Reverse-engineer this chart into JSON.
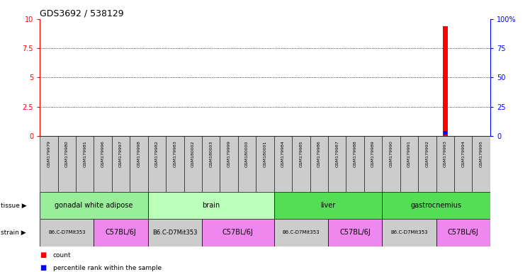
{
  "title": "GDS3692 / 538129",
  "samples": [
    "GSM179979",
    "GSM179980",
    "GSM179981",
    "GSM179996",
    "GSM179997",
    "GSM179998",
    "GSM179982",
    "GSM179983",
    "GSM180002",
    "GSM180003",
    "GSM179999",
    "GSM180000",
    "GSM180001",
    "GSM179984",
    "GSM179985",
    "GSM179986",
    "GSM179987",
    "GSM179988",
    "GSM179989",
    "GSM179990",
    "GSM179991",
    "GSM179992",
    "GSM179993",
    "GSM179994",
    "GSM179995"
  ],
  "count_values": [
    0,
    0,
    0,
    0,
    0,
    0,
    0,
    0,
    0,
    0,
    0,
    0,
    0,
    0,
    0,
    0,
    0,
    0,
    0,
    0,
    0,
    0,
    9.4,
    0,
    0
  ],
  "percentile_values": [
    0,
    0,
    0,
    0,
    0,
    0,
    0,
    0,
    0,
    0,
    0,
    0,
    0,
    0,
    0,
    0,
    0,
    0,
    0,
    0,
    0,
    0,
    3,
    0,
    0
  ],
  "ylim_left": [
    0,
    10
  ],
  "ylim_right": [
    0,
    100
  ],
  "yticks_left": [
    0,
    2.5,
    5,
    7.5,
    10
  ],
  "yticks_right": [
    0,
    25,
    50,
    75,
    100
  ],
  "ytick_labels_left": [
    "0",
    "2.5",
    "5",
    "7.5",
    "10"
  ],
  "ytick_labels_right": [
    "0",
    "25",
    "50",
    "75",
    "100%"
  ],
  "tissue_groups": [
    {
      "label": "gonadal white adipose",
      "start": 0,
      "end": 6,
      "color": "#99ee99"
    },
    {
      "label": "brain",
      "start": 6,
      "end": 13,
      "color": "#bbffbb"
    },
    {
      "label": "liver",
      "start": 13,
      "end": 19,
      "color": "#55dd55"
    },
    {
      "label": "gastrocnemius",
      "start": 19,
      "end": 25,
      "color": "#55dd55"
    }
  ],
  "strain_groups": [
    {
      "label": "B6.C-D7Mit353",
      "start": 0,
      "end": 3,
      "color": "#cccccc",
      "fontsize": 5
    },
    {
      "label": "C57BL/6J",
      "start": 3,
      "end": 6,
      "color": "#ee88ee",
      "fontsize": 7
    },
    {
      "label": "B6.C-D7Mit353",
      "start": 6,
      "end": 9,
      "color": "#cccccc",
      "fontsize": 6
    },
    {
      "label": "C57BL/6J",
      "start": 9,
      "end": 13,
      "color": "#ee88ee",
      "fontsize": 7
    },
    {
      "label": "B6.C-D7Mit353",
      "start": 13,
      "end": 16,
      "color": "#cccccc",
      "fontsize": 5
    },
    {
      "label": "C57BL/6J",
      "start": 16,
      "end": 19,
      "color": "#ee88ee",
      "fontsize": 7
    },
    {
      "label": "B6.C-D7Mit353",
      "start": 19,
      "end": 22,
      "color": "#cccccc",
      "fontsize": 5
    },
    {
      "label": "C57BL/6J",
      "start": 22,
      "end": 25,
      "color": "#ee88ee",
      "fontsize": 7
    }
  ],
  "bar_color": "#ff0000",
  "percentile_color": "#0000ff",
  "grid_color": "#000000",
  "axis_left_color": "#ff0000",
  "axis_right_color": "#0000ff",
  "bg_color": "#ffffff",
  "xtick_bg_color": "#cccccc",
  "legend_count_label": "count",
  "legend_percentile_label": "percentile rank within the sample",
  "title_fontsize": 9,
  "tick_fontsize": 6,
  "label_fontsize": 7
}
